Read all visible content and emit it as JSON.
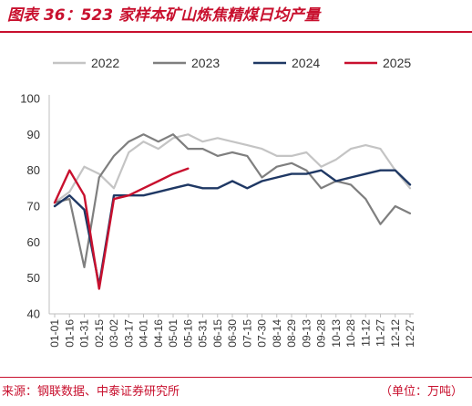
{
  "header": {
    "title": "图表 36：523 家样本矿山炼焦精煤日均产量"
  },
  "footer": {
    "source": "来源：钢联数据、中泰证券研究所",
    "unit": "（单位：万吨）"
  },
  "chart_data": {
    "type": "line",
    "title": "图表 36：523 家样本矿山炼焦精煤日均产量",
    "xlabel": "",
    "ylabel": "",
    "ylim": [
      40,
      100
    ],
    "yticks": [
      40,
      50,
      60,
      70,
      80,
      90,
      100
    ],
    "categories": [
      "01-01",
      "01-16",
      "01-31",
      "02-15",
      "03-02",
      "03-17",
      "04-01",
      "04-16",
      "05-01",
      "05-16",
      "05-31",
      "06-15",
      "06-30",
      "07-15",
      "07-30",
      "08-14",
      "08-29",
      "09-13",
      "09-28",
      "10-13",
      "10-28",
      "11-12",
      "11-27",
      "12-12",
      "12-27"
    ],
    "legend_position": "top",
    "grid": false,
    "series": [
      {
        "name": "2022",
        "color": "#c4c4c4",
        "values": [
          71,
          74,
          81,
          79,
          75,
          85,
          88,
          86,
          89,
          90,
          88,
          89,
          88,
          87,
          86,
          84,
          84,
          85,
          81,
          83,
          86,
          87,
          86,
          80,
          75
        ]
      },
      {
        "name": "2023",
        "color": "#7f7f7f",
        "values": [
          71,
          72,
          53,
          78,
          84,
          88,
          90,
          88,
          90,
          86,
          86,
          84,
          85,
          84,
          78,
          81,
          82,
          80,
          75,
          77,
          76,
          72,
          65,
          70,
          68
        ]
      },
      {
        "name": "2024",
        "color": "#1f3864",
        "values": [
          70,
          73,
          69,
          48,
          73,
          73,
          73,
          74,
          75,
          76,
          75,
          75,
          77,
          75,
          77,
          78,
          79,
          79,
          80,
          77,
          78,
          79,
          80,
          80,
          76
        ]
      },
      {
        "name": "2025",
        "color": "#c8102e",
        "values": [
          71,
          80,
          73,
          47,
          72,
          73,
          75,
          77,
          79,
          80.5,
          null,
          null,
          null,
          null,
          null,
          null,
          null,
          null,
          null,
          null,
          null,
          null,
          null,
          null,
          null
        ]
      }
    ]
  }
}
